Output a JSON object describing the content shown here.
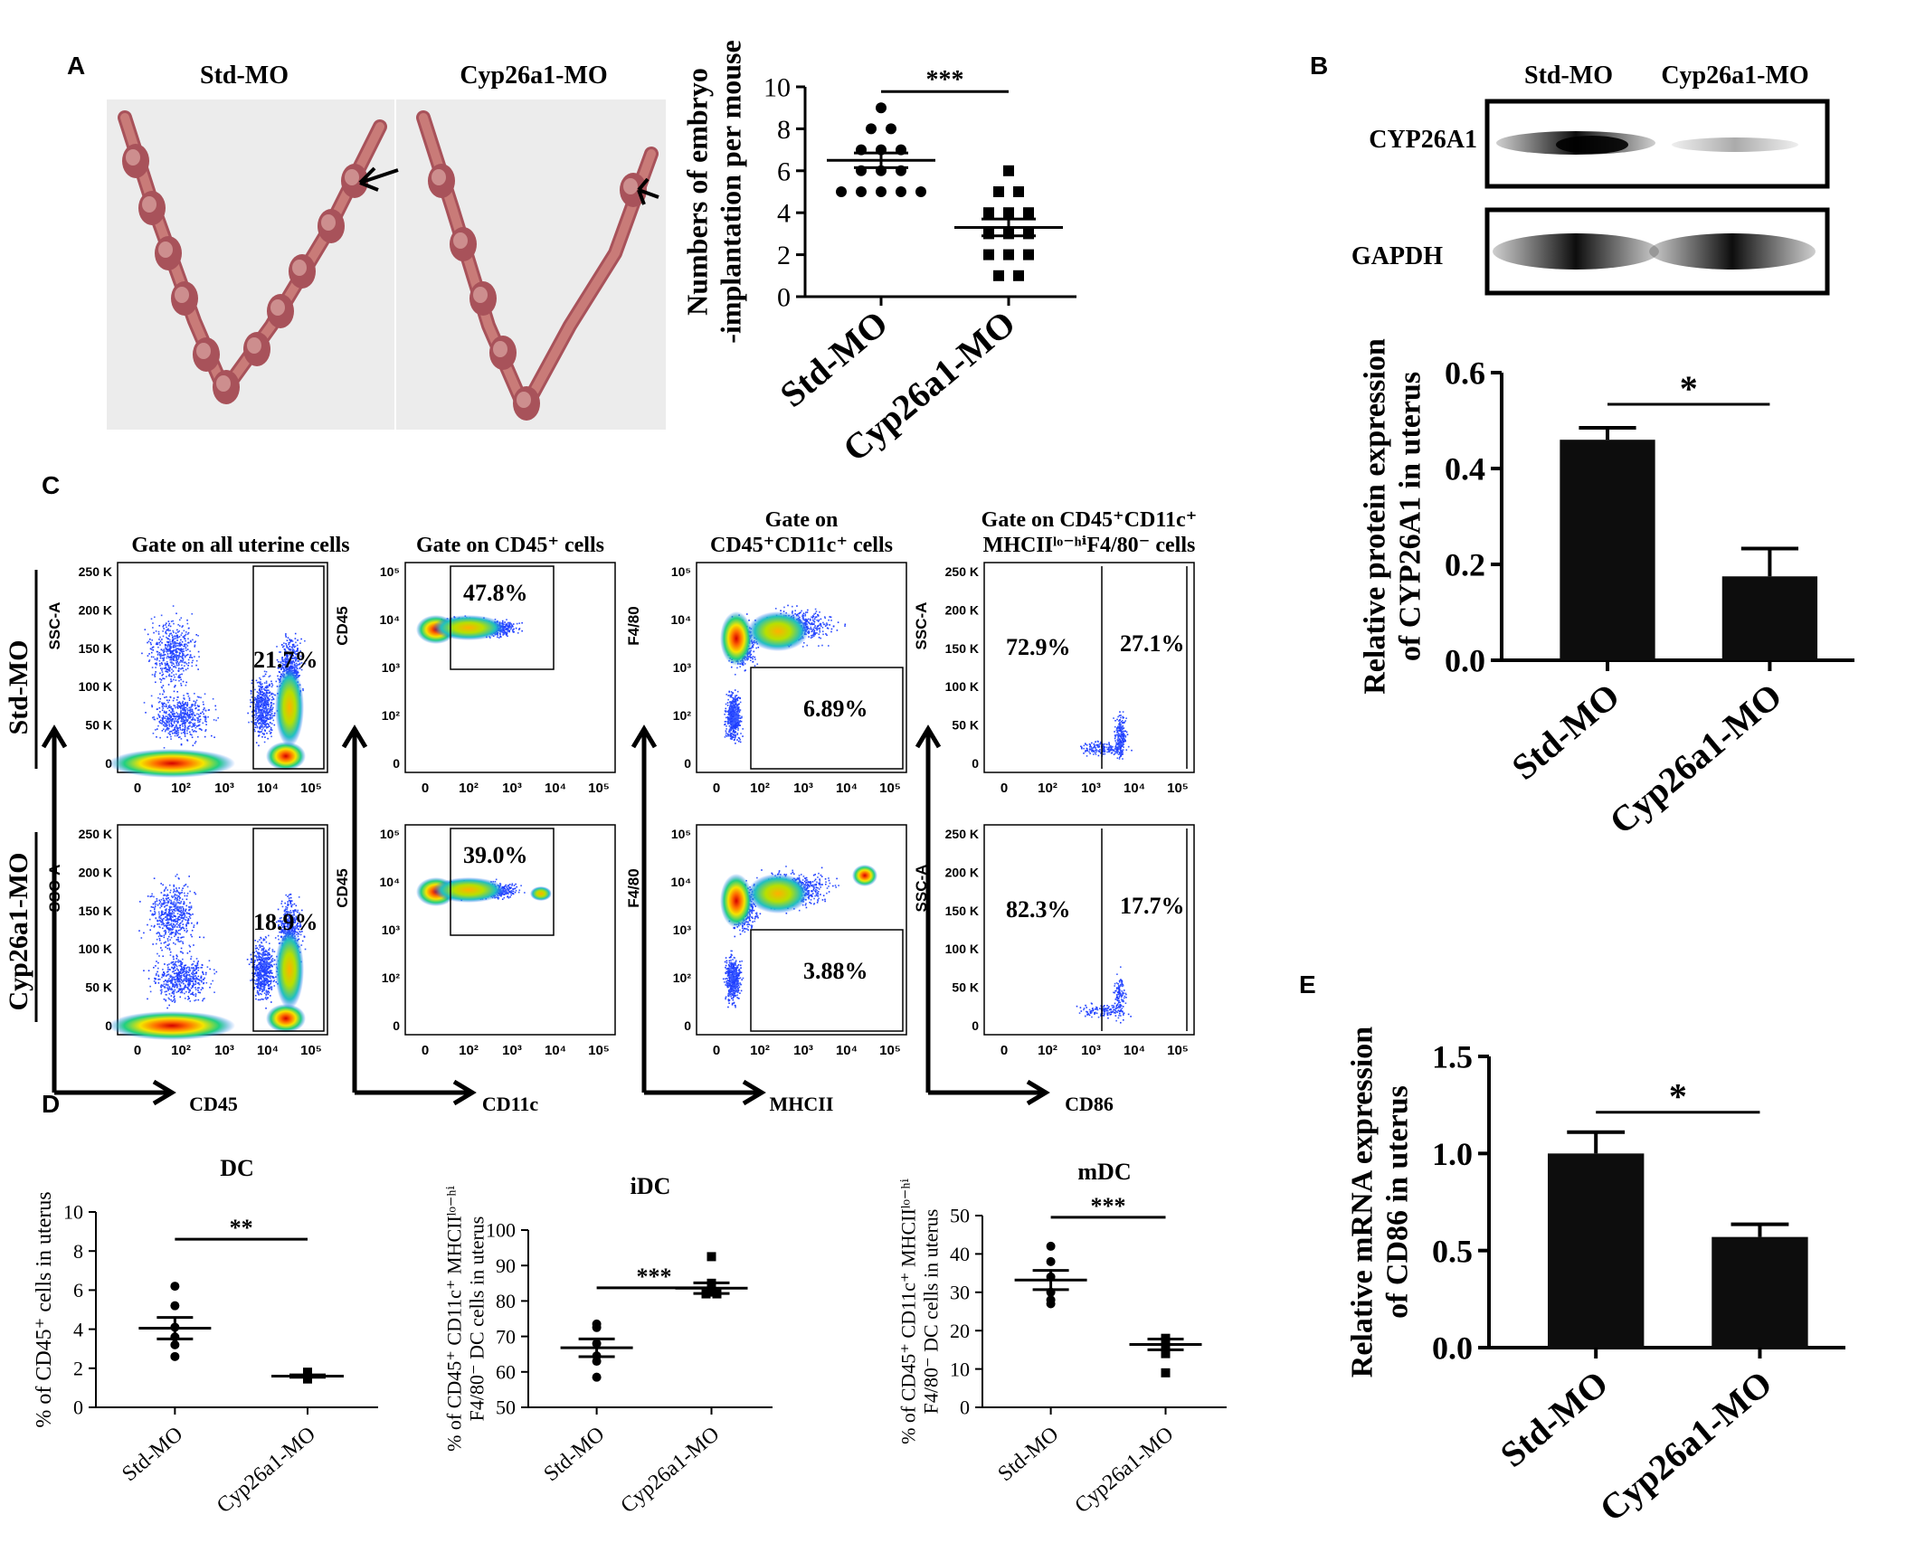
{
  "panels": {
    "A": {
      "letter": "A",
      "photo_labels": [
        "Std-MO",
        "Cyp26a1-MO"
      ],
      "colors": {
        "photo_bg": "#ececec",
        "tissue": "#c97b78",
        "tissue_dark": "#a8525a",
        "tissue_light": "#e6b7b0"
      }
    },
    "B": {
      "letter": "B",
      "blot": {
        "lanes": [
          "Std-MO",
          "Cyp26a1-MO"
        ],
        "rows": [
          "CYP26A1",
          "GAPDH"
        ]
      }
    },
    "C": {
      "letter": "C",
      "rows": [
        "Std-MO",
        "Cyp26a1-MO"
      ],
      "columns": [
        {
          "title_lines": [
            "Gate on all uterine cells"
          ],
          "x_label": "CD45",
          "y_label": "SSC-A"
        },
        {
          "title_lines": [
            "Gate on CD45⁺ cells"
          ],
          "x_label": "CD11c",
          "y_label": "CD45"
        },
        {
          "title_lines": [
            "Gate on",
            "CD45⁺CD11c⁺ cells"
          ],
          "x_label": "MHCII",
          "y_label": "F4/80"
        },
        {
          "title_lines": [
            "Gate on CD45⁺CD11c⁺",
            "MHCIIˡᵒ⁻ʰⁱF4/80⁻ cells"
          ],
          "x_label": "CD86",
          "y_label": "SSC-A"
        }
      ],
      "percentages": [
        [
          "21.7%",
          "47.8%",
          "6.89%",
          "72.9%",
          "27.1%"
        ],
        [
          "18.9%",
          "39.0%",
          "3.88%",
          "82.3%",
          "17.7%"
        ]
      ],
      "linear_ticks": [
        "250 K",
        "200 K",
        "150 K",
        "100 K",
        "50 K",
        "0"
      ],
      "log_ticks_x": [
        "0",
        "10²",
        "10³",
        "10⁴",
        "10⁵"
      ],
      "log_ticks_y": [
        "10⁵",
        "10⁴",
        "10³",
        "10²",
        "0"
      ]
    },
    "D": {
      "letter": "D"
    },
    "E": {
      "letter": "E"
    }
  },
  "chart_data": [
    {
      "id": "A",
      "type": "scatter",
      "categories": [
        "Std-MO",
        "Cyp26a1-MO"
      ],
      "ylabel_lines": [
        "Numbers of embryo",
        "-implantation per mouse"
      ],
      "ylim": [
        0,
        10
      ],
      "yticks": [
        0,
        2,
        4,
        6,
        8,
        10
      ],
      "significance": "***",
      "series": [
        {
          "values": [
            9,
            8,
            8,
            7,
            7,
            7,
            6,
            6,
            6,
            5,
            5,
            5,
            5,
            5
          ],
          "mean": 6.5,
          "sem": 0.35
        },
        {
          "values": [
            6,
            5,
            5,
            4,
            4,
            4,
            3,
            3,
            3,
            2,
            2,
            2,
            1,
            1
          ],
          "mean": 3.3,
          "sem": 0.4
        }
      ]
    },
    {
      "id": "B",
      "type": "bar",
      "categories": [
        "Std-MO",
        "Cyp26a1-MO"
      ],
      "ylabel_lines": [
        "Relative protein expression",
        "of CYP26A1 in uterus"
      ],
      "ylim": [
        0,
        0.6
      ],
      "yticks": [
        "0.0",
        "0.2",
        "0.4",
        "0.6"
      ],
      "values": [
        0.46,
        0.175
      ],
      "errors": [
        0.025,
        0.058
      ],
      "significance": "*"
    },
    {
      "id": "D-DC",
      "type": "scatter",
      "title": "DC",
      "categories": [
        "Std-MO",
        "Cyp26a1-MO"
      ],
      "ylabel_lines": [
        "% of CD45⁺ cells in  uterus"
      ],
      "ylim": [
        0,
        10
      ],
      "yticks": [
        0,
        2,
        4,
        6,
        8,
        10
      ],
      "significance": "**",
      "series": [
        {
          "values": [
            6.2,
            5.2,
            4.1,
            3.6,
            3.2,
            2.6
          ],
          "mean": 4.05,
          "sem": 0.55
        },
        {
          "values": [
            1.8,
            1.7,
            1.6,
            1.55,
            1.5,
            1.45
          ],
          "mean": 1.6,
          "sem": 0.06
        }
      ]
    },
    {
      "id": "D-iDC",
      "type": "scatter",
      "title": "iDC",
      "categories": [
        "Std-MO",
        "Cyp26a1-MO"
      ],
      "ylabel_lines": [
        "% of CD45⁺ CD11c⁺ MHCIIˡᵒ⁻ʰⁱ",
        "F4/80⁻ DC cells in uterus"
      ],
      "ylim": [
        50,
        100
      ],
      "yticks": [
        50,
        60,
        70,
        80,
        90,
        100
      ],
      "significance": "***",
      "series": [
        {
          "values": [
            73.5,
            72.5,
            68,
            64.5,
            63,
            58.5
          ],
          "mean": 66.8,
          "sem": 2.5
        },
        {
          "values": [
            92.5,
            85,
            84,
            82.5,
            82,
            82
          ],
          "mean": 83.6,
          "sem": 1.5
        }
      ]
    },
    {
      "id": "D-mDC",
      "type": "scatter",
      "title": "mDC",
      "categories": [
        "Std-MO",
        "Cyp26a1-MO"
      ],
      "ylabel_lines": [
        "% of CD45⁺ CD11c⁺ MHCIIˡᵒ⁻ʰⁱ",
        "F4/80⁻ DC cells in uterus"
      ],
      "ylim": [
        0,
        50
      ],
      "yticks": [
        0,
        10,
        20,
        30,
        40,
        50
      ],
      "significance": "***",
      "series": [
        {
          "values": [
            42,
            38,
            34,
            30,
            28,
            27
          ],
          "mean": 33.2,
          "sem": 2.5
        },
        {
          "values": [
            18,
            17.5,
            17,
            15,
            14,
            9
          ],
          "mean": 16.4,
          "sem": 1.4
        }
      ]
    },
    {
      "id": "E",
      "type": "bar",
      "categories": [
        "Std-MO",
        "Cyp26a1-MO"
      ],
      "ylabel_lines": [
        "Relative mRNA expression",
        "of CD86 in uterus"
      ],
      "ylim": [
        0,
        1.5
      ],
      "yticks": [
        "0.0",
        "0.5",
        "1.0",
        "1.5"
      ],
      "values": [
        1.0,
        0.57
      ],
      "errors": [
        0.11,
        0.065
      ],
      "significance": "*"
    }
  ]
}
